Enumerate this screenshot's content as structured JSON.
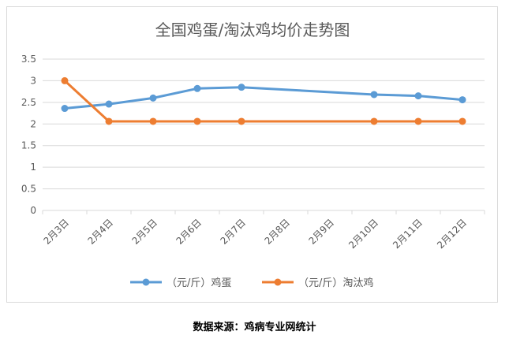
{
  "chart_data": {
    "type": "line",
    "title": "全国鸡蛋/淘汰鸡均价走势图",
    "xlabel": "",
    "ylabel": "",
    "categories": [
      "2月3日",
      "2月4日",
      "2月5日",
      "2月6日",
      "2月7日",
      "2月8日",
      "2月9日",
      "2月10日",
      "2月11日",
      "2月12日"
    ],
    "x_positions": [
      0,
      1,
      2,
      3,
      4,
      5,
      6,
      7,
      8,
      9
    ],
    "ylim": [
      0,
      3.5
    ],
    "yticks": [
      "0",
      "0.5",
      "1",
      "1.5",
      "2",
      "2.5",
      "3",
      "3.5"
    ],
    "grid": true,
    "legend_position": "bottom",
    "series": [
      {
        "name": "（元/斤）鸡蛋",
        "color": "#5B9BD5",
        "points": [
          {
            "x": 0,
            "y": 2.36
          },
          {
            "x": 1,
            "y": 2.46
          },
          {
            "x": 2,
            "y": 2.6
          },
          {
            "x": 3,
            "y": 2.82
          },
          {
            "x": 4,
            "y": 2.85
          },
          {
            "x": 7,
            "y": 2.68
          },
          {
            "x": 8,
            "y": 2.65
          },
          {
            "x": 9,
            "y": 2.56
          }
        ]
      },
      {
        "name": "（元/斤）淘汰鸡",
        "color": "#ED7D31",
        "points": [
          {
            "x": 0,
            "y": 3.0
          },
          {
            "x": 1,
            "y": 2.06
          },
          {
            "x": 2,
            "y": 2.06
          },
          {
            "x": 3,
            "y": 2.06
          },
          {
            "x": 4,
            "y": 2.06
          },
          {
            "x": 7,
            "y": 2.06
          },
          {
            "x": 8,
            "y": 2.06
          },
          {
            "x": 9,
            "y": 2.06
          }
        ]
      }
    ]
  },
  "source_note": "数据来源：鸡病专业网统计"
}
